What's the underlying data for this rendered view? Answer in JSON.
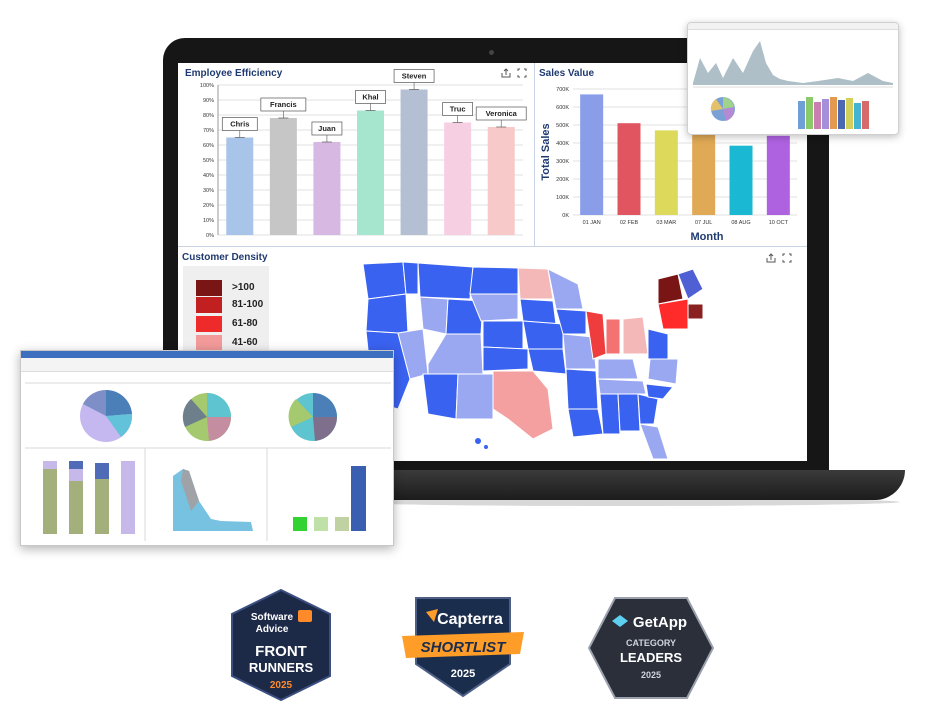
{
  "employee_efficiency": {
    "title": "Employee Efficiency",
    "chart_data": {
      "type": "bar",
      "title": "Employee Efficiency",
      "categories": [
        "Chris",
        "Francis",
        "Juan",
        "Khal",
        "Steven",
        "Truc",
        "Veronica"
      ],
      "values": [
        65,
        78,
        62,
        83,
        97,
        75,
        72
      ],
      "ylim": [
        0,
        100
      ],
      "yticks": [
        "0%",
        "10%",
        "20%",
        "30%",
        "40%",
        "50%",
        "60%",
        "70%",
        "80%",
        "90%",
        "100%"
      ],
      "colors": [
        "#a9c4e9",
        "#c6c6c6",
        "#d6b8e2",
        "#a6e6cf",
        "#b4bfd3",
        "#f6cfe3",
        "#f7c9c9"
      ],
      "grid": true
    }
  },
  "sales_value": {
    "title": "Sales Value",
    "chart_data": {
      "type": "bar",
      "title": "Sales Value",
      "categories": [
        "01 JAN",
        "02 FEB",
        "03 MAR",
        "07 JUL",
        "08 AUG",
        "10 OCT"
      ],
      "values": [
        670000,
        510000,
        470000,
        455000,
        385000,
        440000
      ],
      "ylim": [
        0,
        700000
      ],
      "yticks": [
        "0K",
        "100K",
        "200K",
        "300K",
        "400K",
        "500K",
        "600K",
        "700K"
      ],
      "xlabel": "Month",
      "ylabel": "Total Sales",
      "colors": [
        "#8a9de9",
        "#e15560",
        "#dcd95b",
        "#dfa955",
        "#1ab8d2",
        "#ae62e0"
      ],
      "grid": true
    }
  },
  "customer_density": {
    "title": "Customer Density",
    "legend": [
      {
        "label": ">100",
        "color": "#7a1515"
      },
      {
        "label": "81-100",
        "color": "#c22020"
      },
      {
        "label": "61-80",
        "color": "#ef2a2a"
      },
      {
        "label": "41-60",
        "color": "#f29a9a"
      }
    ]
  },
  "badges": {
    "software_advice": {
      "line1": "Software",
      "line2": "Advice",
      "line3": "FRONT",
      "line4": "RUNNERS",
      "year": "2025"
    },
    "capterra": {
      "brand": "Capterra",
      "ribbon": "SHORTLIST",
      "year": "2025"
    },
    "getapp": {
      "brand": "GetApp",
      "line1": "CATEGORY",
      "line2": "LEADERS",
      "year": "2025"
    }
  },
  "icons": {
    "share": "share-icon",
    "expand": "expand-icon"
  }
}
